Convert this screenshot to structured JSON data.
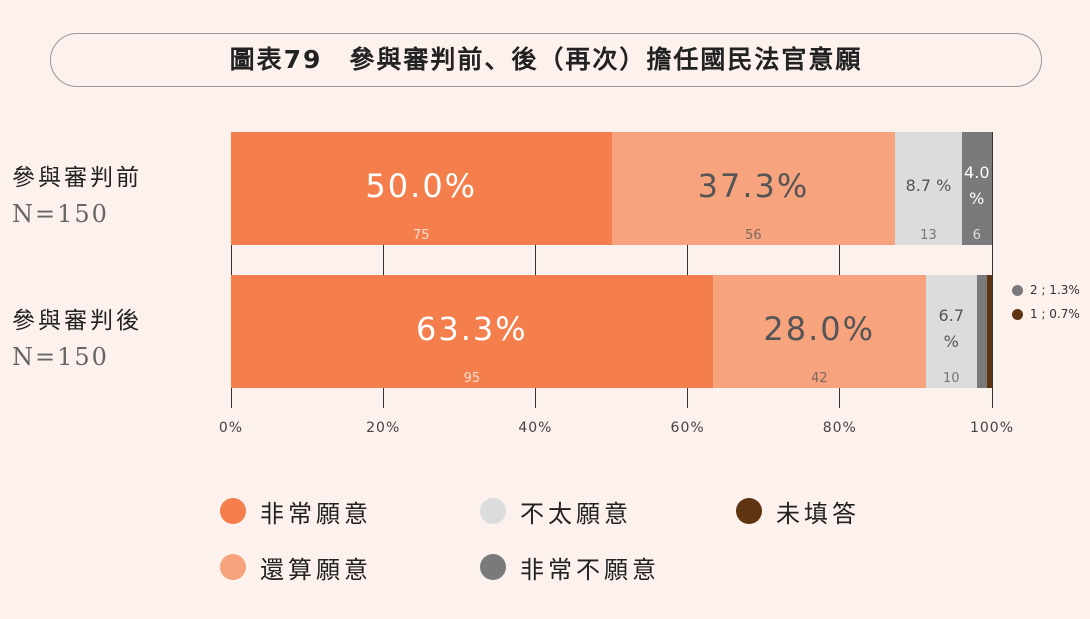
{
  "chart_data": {
    "type": "stacked-bar-horizontal",
    "title": "圖表79　參與審判前、後（再次）擔任國民法官意願",
    "categories": [
      "參與審判前",
      "參與審判後"
    ],
    "category_notes": [
      "N=150",
      "N=150"
    ],
    "series": [
      {
        "name": "非常願意",
        "color": "#f47f4c",
        "label_color": "#ffffff",
        "values": [
          50.0,
          63.3
        ],
        "value_labels": [
          "50.0%",
          "63.3%"
        ],
        "counts": [
          75,
          95
        ]
      },
      {
        "name": "還算願意",
        "color": "#f6a37e",
        "label_color": "#555555",
        "values": [
          37.3,
          28.0
        ],
        "value_labels": [
          "37.3%",
          "28.0%"
        ],
        "counts": [
          56,
          42
        ]
      },
      {
        "name": "不太願意",
        "color": "#dcdcdc",
        "label_color": "#555555",
        "values": [
          8.7,
          6.7
        ],
        "value_labels": [
          "8.7 %",
          "6.7 %"
        ],
        "counts": [
          13,
          10
        ]
      },
      {
        "name": "非常不願意",
        "color": "#7a7a7c",
        "label_color": "#ffffff",
        "values": [
          4.0,
          1.3
        ],
        "value_labels": [
          "4.0 %",
          null
        ],
        "counts": [
          6,
          null
        ],
        "callout_labels": [
          null,
          "2 ; 1.3%"
        ]
      },
      {
        "name": "未填答",
        "color": "#5e3413",
        "label_color": "#ffffff",
        "values": [
          null,
          0.7
        ],
        "value_labels": [
          null,
          null
        ],
        "counts": [
          null,
          null
        ],
        "callout_labels": [
          null,
          "1 ; 0.7%"
        ]
      }
    ],
    "xlim": [
      0,
      100
    ],
    "xticks": [
      {
        "value": 0,
        "label": "0%"
      },
      {
        "value": 20,
        "label": "20%"
      },
      {
        "value": 40,
        "label": "40%"
      },
      {
        "value": 60,
        "label": "60%"
      },
      {
        "value": 80,
        "label": "80%"
      },
      {
        "value": 100,
        "label": "100%"
      }
    ],
    "grid": true
  }
}
